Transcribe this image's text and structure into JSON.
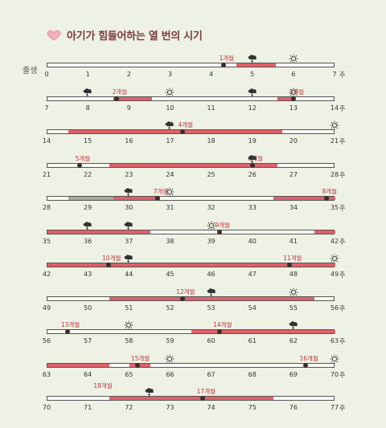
{
  "title": "아기가 힘들어하는 열 번의 시기",
  "birth_label": "출생",
  "unit_label": "주",
  "colors": {
    "red": "#e0606a",
    "gray": "#a8a8a0",
    "dot": "#3a2f2a",
    "label": "#c2303a"
  },
  "rows": [
    {
      "start": 0,
      "segments": [
        {
          "from": 4.6,
          "to": 5.55,
          "color": "red"
        }
      ],
      "leaps": [
        {
          "week": 4.3,
          "label": "1개월"
        }
      ],
      "icons": [
        {
          "week": 5.0,
          "type": "storm-icon"
        },
        {
          "week": 6.0,
          "type": "sun-icon"
        }
      ]
    },
    {
      "start": 7,
      "segments": [
        {
          "from": 8.6,
          "to": 9.55,
          "color": "red"
        },
        {
          "from": 12.6,
          "to": 13.0,
          "color": "red"
        }
      ],
      "leaps": [
        {
          "week": 8.7,
          "label": "2개월"
        },
        {
          "week": 13.0,
          "label": "3개월"
        }
      ],
      "icons": [
        {
          "week": 8.0,
          "type": "storm-icon"
        },
        {
          "week": 10.0,
          "type": "sun-icon"
        },
        {
          "week": 12.0,
          "type": "storm-icon"
        },
        {
          "week": 13.0,
          "type": "sun-icon"
        }
      ]
    },
    {
      "start": 14,
      "segments": [
        {
          "from": 14.5,
          "to": 19.7,
          "color": "red"
        }
      ],
      "leaps": [
        {
          "week": 17.3,
          "label": "4개월"
        }
      ],
      "icons": [
        {
          "week": 17.0,
          "type": "storm-icon"
        },
        {
          "week": 21.0,
          "type": "sun-icon"
        }
      ]
    },
    {
      "start": 21,
      "segments": [
        {
          "from": 22.5,
          "to": 25.6,
          "color": "red"
        },
        {
          "from": 25.6,
          "to": 26.6,
          "color": "red"
        }
      ],
      "leaps": [
        {
          "week": 21.8,
          "label": "5개월"
        },
        {
          "week": 26.0,
          "label": "6개월"
        }
      ],
      "icons": [
        {
          "week": 26.0,
          "type": "storm-icon"
        }
      ]
    },
    {
      "start": 28,
      "segments": [
        {
          "from": 28.5,
          "to": 29.6,
          "color": "gray"
        },
        {
          "from": 29.6,
          "to": 30.7,
          "color": "red"
        },
        {
          "from": 33.5,
          "to": 35.0,
          "color": "red"
        }
      ],
      "leaps": [
        {
          "week": 30.7,
          "label": "7개월"
        },
        {
          "week": 34.8,
          "label": "8개월"
        }
      ],
      "icons": [
        {
          "week": 30.0,
          "type": "storm-icon"
        },
        {
          "week": 31.0,
          "type": "sun-icon"
        }
      ]
    },
    {
      "start": 35,
      "segments": [
        {
          "from": 35.0,
          "to": 37.5,
          "color": "red"
        },
        {
          "from": 41.5,
          "to": 42.0,
          "color": "red"
        }
      ],
      "leaps": [
        {
          "week": 39.2,
          "label": "9개월"
        }
      ],
      "icons": [
        {
          "week": 36.0,
          "type": "storm-icon"
        },
        {
          "week": 37.0,
          "type": "storm-icon"
        },
        {
          "week": 39.0,
          "type": "sun-icon"
        }
      ]
    },
    {
      "start": 42,
      "segments": [
        {
          "from": 42.0,
          "to": 46.6,
          "color": "red"
        },
        {
          "from": 46.6,
          "to": 49.0,
          "color": "red"
        }
      ],
      "leaps": [
        {
          "week": 43.5,
          "label": "10개월"
        },
        {
          "week": 47.9,
          "label": "11개월"
        }
      ],
      "icons": [
        {
          "week": 44.0,
          "type": "storm-icon"
        },
        {
          "week": 49.0,
          "type": "sun-icon"
        }
      ]
    },
    {
      "start": 49,
      "segments": [
        {
          "from": 50.5,
          "to": 55.5,
          "color": "red"
        }
      ],
      "leaps": [
        {
          "week": 52.3,
          "label": "12개월"
        }
      ],
      "icons": [
        {
          "week": 53.0,
          "type": "storm-icon"
        },
        {
          "week": 55.0,
          "type": "sun-icon"
        }
      ]
    },
    {
      "start": 56,
      "segments": [
        {
          "from": 59.5,
          "to": 63.0,
          "color": "red"
        }
      ],
      "leaps": [
        {
          "week": 56.5,
          "label": "13개월"
        },
        {
          "week": 60.2,
          "label": "14개월"
        }
      ],
      "icons": [
        {
          "week": 58.0,
          "type": "sun-icon"
        },
        {
          "week": 62.0,
          "type": "storm-icon"
        }
      ]
    },
    {
      "start": 63,
      "segments": [
        {
          "from": 63.0,
          "to": 64.5,
          "color": "red"
        },
        {
          "from": 65.0,
          "to": 65.5,
          "color": "red"
        }
      ],
      "leaps": [
        {
          "week": 65.2,
          "label": "15개월"
        },
        {
          "week": 69.3,
          "label": "16개월"
        }
      ],
      "icons": [
        {
          "week": 66.0,
          "type": "sun-icon"
        },
        {
          "week": 70.0,
          "type": "sun-icon"
        }
      ]
    },
    {
      "start": 70,
      "segments": [
        {
          "from": 71.5,
          "to": 75.5,
          "color": "red"
        }
      ],
      "leaps": [
        {
          "week": 73.8,
          "label": "17개월"
        }
      ],
      "icons": [
        {
          "week": 72.5,
          "type": "storm-icon"
        }
      ]
    }
  ],
  "partial_labels": [
    "18개월"
  ]
}
